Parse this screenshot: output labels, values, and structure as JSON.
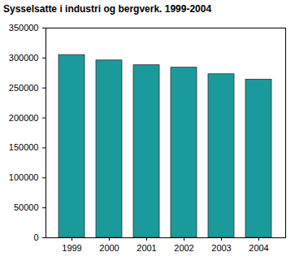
{
  "chart_data": {
    "type": "bar",
    "title": "Sysselsatte i industri og bergverk. 1999-2004",
    "categories": [
      "1999",
      "2000",
      "2001",
      "2002",
      "2003",
      "2004"
    ],
    "values": [
      305000,
      296000,
      288000,
      284000,
      273000,
      264000
    ],
    "color": "#1a9a9a",
    "ylim": [
      0,
      350000
    ],
    "yticks": [
      0,
      50000,
      100000,
      150000,
      200000,
      250000,
      300000,
      350000
    ],
    "grid": false
  }
}
